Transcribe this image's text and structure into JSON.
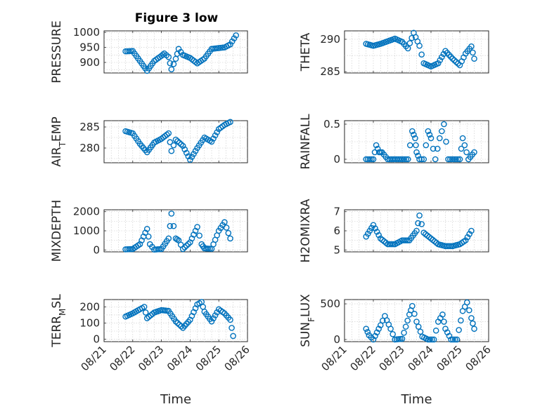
{
  "figure": {
    "title": "Figure 3 low",
    "marker_color": "#0072BD",
    "marker": "circle"
  },
  "chart_data": [
    {
      "type": "scatter",
      "ylabel_parts": [
        "PRESSURE"
      ],
      "xlabel": "",
      "yticks": [
        900,
        950,
        1000
      ],
      "ylim": [
        865,
        1005
      ],
      "xlim": [
        "08/21",
        "08/26"
      ],
      "xticks": [
        "08/21",
        "08/22",
        "08/23",
        "08/24",
        "08/25",
        "08/26"
      ],
      "x_start": "08/21",
      "x_end": "08/26",
      "grid": true,
      "series": [
        {
          "points": [
            [
              0.75,
              937
            ],
            [
              1.0,
              938
            ],
            [
              1.25,
              905
            ],
            [
              1.5,
              872
            ],
            [
              1.75,
              905
            ],
            [
              2.0,
              922
            ],
            [
              2.1,
              930
            ],
            [
              2.25,
              918
            ],
            [
              2.35,
              877
            ],
            [
              2.5,
              912
            ],
            [
              2.6,
              945
            ],
            [
              2.75,
              925
            ],
            [
              3.0,
              915
            ],
            [
              3.25,
              897
            ],
            [
              3.5,
              913
            ],
            [
              3.75,
              945
            ],
            [
              4.0,
              948
            ],
            [
              4.2,
              950
            ],
            [
              4.4,
              960
            ],
            [
              4.6,
              990
            ]
          ]
        }
      ]
    },
    {
      "type": "scatter",
      "ylabel_parts": [
        "THETA"
      ],
      "xlabel": "",
      "yticks": [
        285,
        290
      ],
      "ylim": [
        284.8,
        291.3
      ],
      "xlim": [
        "08/21",
        "08/26"
      ],
      "xticks": [
        "08/21",
        "08/22",
        "08/23",
        "08/24",
        "08/25",
        "08/26"
      ],
      "x_start": "08/21",
      "x_end": "08/26",
      "grid": true,
      "series": [
        {
          "points": [
            [
              0.75,
              289.3
            ],
            [
              1.0,
              289.0
            ],
            [
              1.25,
              289.3
            ],
            [
              1.5,
              289.7
            ],
            [
              1.75,
              290.1
            ],
            [
              2.0,
              289.6
            ],
            [
              2.2,
              288.6
            ],
            [
              2.4,
              291.0
            ],
            [
              2.6,
              289.0
            ],
            [
              2.75,
              286.3
            ],
            [
              3.0,
              285.8
            ],
            [
              3.25,
              286.3
            ],
            [
              3.5,
              288.2
            ],
            [
              3.75,
              287.0
            ],
            [
              4.0,
              286.0
            ],
            [
              4.2,
              287.8
            ],
            [
              4.4,
              288.9
            ],
            [
              4.5,
              287.0
            ]
          ]
        }
      ]
    },
    {
      "type": "scatter",
      "ylabel_parts": [
        "AIR",
        "T",
        "EMP"
      ],
      "xlabel": "",
      "yticks": [
        280,
        285
      ],
      "ylim": [
        276.5,
        286.5
      ],
      "xlim": [
        "08/21",
        "08/26"
      ],
      "xticks": [
        "08/21",
        "08/22",
        "08/23",
        "08/24",
        "08/25",
        "08/26"
      ],
      "x_start": "08/21",
      "x_end": "08/26",
      "grid": true,
      "series": [
        {
          "points": [
            [
              0.75,
              284.0
            ],
            [
              1.0,
              283.5
            ],
            [
              1.25,
              281.0
            ],
            [
              1.5,
              279.0
            ],
            [
              1.75,
              281.3
            ],
            [
              2.0,
              282.2
            ],
            [
              2.25,
              283.5
            ],
            [
              2.35,
              279.3
            ],
            [
              2.5,
              282.0
            ],
            [
              2.75,
              280.5
            ],
            [
              3.0,
              277.2
            ],
            [
              3.25,
              280.0
            ],
            [
              3.5,
              282.5
            ],
            [
              3.75,
              281.5
            ],
            [
              4.0,
              284.5
            ],
            [
              4.2,
              285.5
            ],
            [
              4.4,
              286.2
            ]
          ]
        }
      ]
    },
    {
      "type": "scatter",
      "ylabel_parts": [
        "RAINFALL"
      ],
      "xlabel": "",
      "yticks": [
        0,
        0.5
      ],
      "ylim": [
        -0.05,
        0.55
      ],
      "xlim": [
        "08/21",
        "08/26"
      ],
      "xticks": [
        "08/21",
        "08/22",
        "08/23",
        "08/24",
        "08/25",
        "08/26"
      ],
      "x_start": "08/21",
      "x_end": "08/26",
      "grid": true,
      "series": [
        {
          "points": [
            [
              0.75,
              0
            ],
            [
              1.0,
              0
            ],
            [
              1.1,
              0.2
            ],
            [
              1.2,
              0.1
            ],
            [
              1.3,
              0.1
            ],
            [
              1.5,
              0
            ],
            [
              1.75,
              0
            ],
            [
              2.0,
              0
            ],
            [
              2.2,
              0
            ],
            [
              2.35,
              0.4
            ],
            [
              2.45,
              0.3
            ],
            [
              2.5,
              0.1
            ],
            [
              2.6,
              0
            ],
            [
              2.75,
              0
            ],
            [
              2.9,
              0.4
            ],
            [
              3.0,
              0.3
            ],
            [
              3.15,
              0
            ],
            [
              3.3,
              0.3
            ],
            [
              3.45,
              0.5
            ],
            [
              3.6,
              0
            ],
            [
              3.8,
              0
            ],
            [
              4.0,
              0
            ],
            [
              4.1,
              0.3
            ],
            [
              4.3,
              0
            ],
            [
              4.5,
              0.1
            ]
          ]
        }
      ]
    },
    {
      "type": "scatter",
      "ylabel_parts": [
        "MIXDEPTH"
      ],
      "xlabel": "",
      "yticks": [
        0,
        1000,
        2000
      ],
      "ylim": [
        -100,
        2100
      ],
      "xlim": [
        "08/21",
        "08/26"
      ],
      "xticks": [
        "08/21",
        "08/22",
        "08/23",
        "08/24",
        "08/25",
        "08/26"
      ],
      "x_start": "08/21",
      "x_end": "08/26",
      "grid": true,
      "series": [
        {
          "points": [
            [
              0.75,
              30
            ],
            [
              1.0,
              50
            ],
            [
              1.25,
              300
            ],
            [
              1.5,
              1100
            ],
            [
              1.6,
              300
            ],
            [
              1.75,
              20
            ],
            [
              2.0,
              50
            ],
            [
              2.25,
              600
            ],
            [
              2.35,
              1900
            ],
            [
              2.5,
              600
            ],
            [
              2.6,
              500
            ],
            [
              2.75,
              50
            ],
            [
              3.0,
              400
            ],
            [
              3.25,
              1200
            ],
            [
              3.4,
              300
            ],
            [
              3.5,
              80
            ],
            [
              3.75,
              60
            ],
            [
              4.0,
              1000
            ],
            [
              4.2,
              1450
            ],
            [
              4.4,
              600
            ]
          ]
        }
      ]
    },
    {
      "type": "scatter",
      "ylabel_parts": [
        "H2OMIXRA"
      ],
      "xlabel": "",
      "yticks": [
        5,
        6,
        7
      ],
      "ylim": [
        4.9,
        7.1
      ],
      "xlim": [
        "08/21",
        "08/26"
      ],
      "xticks": [
        "08/21",
        "08/22",
        "08/23",
        "08/24",
        "08/25",
        "08/26"
      ],
      "x_start": "08/21",
      "x_end": "08/26",
      "grid": true,
      "series": [
        {
          "points": [
            [
              0.75,
              5.7
            ],
            [
              1.0,
              6.3
            ],
            [
              1.25,
              5.6
            ],
            [
              1.5,
              5.3
            ],
            [
              1.75,
              5.3
            ],
            [
              2.0,
              5.5
            ],
            [
              2.25,
              5.5
            ],
            [
              2.5,
              6.0
            ],
            [
              2.6,
              6.8
            ],
            [
              2.75,
              5.9
            ],
            [
              3.0,
              5.6
            ],
            [
              3.25,
              5.3
            ],
            [
              3.5,
              5.2
            ],
            [
              3.75,
              5.2
            ],
            [
              4.0,
              5.3
            ],
            [
              4.2,
              5.5
            ],
            [
              4.4,
              6.0
            ]
          ]
        }
      ]
    },
    {
      "type": "scatter",
      "ylabel_parts": [
        "TERR",
        "M",
        "SL"
      ],
      "xlabel": "Time",
      "yticks": [
        0,
        100,
        200
      ],
      "ylim": [
        -15,
        245
      ],
      "xlim": [
        "08/21",
        "08/26"
      ],
      "xticks": [
        "08/21",
        "08/22",
        "08/23",
        "08/24",
        "08/25",
        "08/26"
      ],
      "x_start": "08/21",
      "x_end": "08/26",
      "grid": true,
      "series": [
        {
          "points": [
            [
              0.75,
              140
            ],
            [
              1.0,
              160
            ],
            [
              1.25,
              185
            ],
            [
              1.4,
              200
            ],
            [
              1.5,
              130
            ],
            [
              1.75,
              165
            ],
            [
              2.0,
              180
            ],
            [
              2.25,
              175
            ],
            [
              2.5,
              110
            ],
            [
              2.75,
              70
            ],
            [
              3.0,
              120
            ],
            [
              3.25,
              215
            ],
            [
              3.4,
              230
            ],
            [
              3.5,
              170
            ],
            [
              3.75,
              110
            ],
            [
              4.0,
              185
            ],
            [
              4.2,
              160
            ],
            [
              4.4,
              120
            ],
            [
              4.5,
              20
            ]
          ]
        }
      ]
    },
    {
      "type": "scatter",
      "ylabel_parts": [
        "SUN",
        "F",
        "LUX"
      ],
      "xlabel": "Time",
      "yticks": [
        0,
        500
      ],
      "ylim": [
        -30,
        560
      ],
      "xlim": [
        "08/21",
        "08/26"
      ],
      "xticks": [
        "08/21",
        "08/22",
        "08/23",
        "08/24",
        "08/25",
        "08/26"
      ],
      "x_start": "08/21",
      "x_end": "08/26",
      "grid": true,
      "series": [
        {
          "points": [
            [
              0.75,
              150
            ],
            [
              0.85,
              60
            ],
            [
              1.0,
              0
            ],
            [
              1.25,
              200
            ],
            [
              1.4,
              330
            ],
            [
              1.6,
              150
            ],
            [
              1.75,
              0
            ],
            [
              2.0,
              10
            ],
            [
              2.25,
              350
            ],
            [
              2.35,
              470
            ],
            [
              2.5,
              250
            ],
            [
              2.7,
              40
            ],
            [
              2.9,
              0
            ],
            [
              3.1,
              0
            ],
            [
              3.25,
              250
            ],
            [
              3.4,
              350
            ],
            [
              3.5,
              150
            ],
            [
              3.7,
              0
            ],
            [
              3.9,
              0
            ],
            [
              4.1,
              400
            ],
            [
              4.25,
              520
            ],
            [
              4.4,
              300
            ],
            [
              4.5,
              150
            ]
          ]
        }
      ]
    }
  ]
}
